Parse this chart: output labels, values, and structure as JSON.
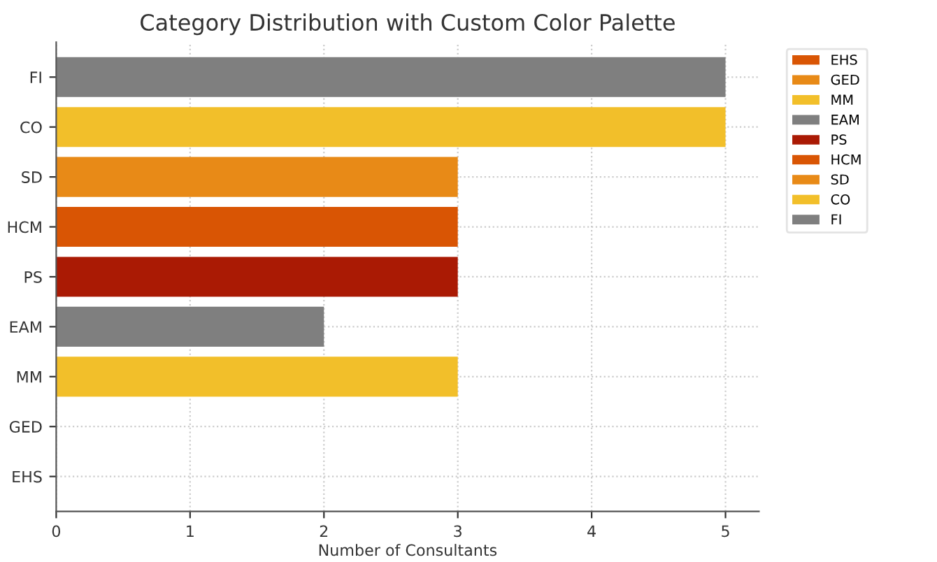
{
  "chart_data": {
    "type": "bar",
    "orientation": "horizontal",
    "title": "Category Distribution with Custom Color Palette",
    "xlabel": "Number of Consultants",
    "categories": [
      "FI",
      "CO",
      "SD",
      "HCM",
      "PS",
      "EAM",
      "MM",
      "GED",
      "EHS"
    ],
    "series": [
      {
        "name": "EHS",
        "color": "#d95504",
        "values": [
          null,
          null,
          null,
          null,
          null,
          null,
          null,
          null,
          0
        ]
      },
      {
        "name": "GED",
        "color": "#e88a17",
        "values": [
          null,
          null,
          null,
          null,
          null,
          null,
          null,
          0,
          null
        ]
      },
      {
        "name": "MM",
        "color": "#f2bf2a",
        "values": [
          null,
          null,
          null,
          null,
          null,
          null,
          3,
          null,
          null
        ]
      },
      {
        "name": "EAM",
        "color": "#7f7f7f",
        "values": [
          null,
          null,
          null,
          null,
          null,
          2,
          null,
          null,
          null
        ]
      },
      {
        "name": "PS",
        "color": "#aa1a04",
        "values": [
          null,
          null,
          null,
          null,
          3,
          null,
          null,
          null,
          null
        ]
      },
      {
        "name": "HCM",
        "color": "#d95504",
        "values": [
          null,
          null,
          null,
          3,
          null,
          null,
          null,
          null,
          null
        ]
      },
      {
        "name": "SD",
        "color": "#e88a17",
        "values": [
          null,
          null,
          3,
          null,
          null,
          null,
          null,
          null,
          null
        ]
      },
      {
        "name": "CO",
        "color": "#f2bf2a",
        "values": [
          null,
          5,
          null,
          null,
          null,
          null,
          null,
          null,
          null
        ]
      },
      {
        "name": "FI",
        "color": "#7f7f7f",
        "values": [
          5,
          null,
          null,
          null,
          null,
          null,
          null,
          null,
          null
        ]
      }
    ],
    "xlim": [
      0,
      5.25
    ],
    "xticks": [
      0,
      1,
      2,
      3,
      4,
      5
    ],
    "grid": true,
    "line_style": "dotted",
    "legend": "top right"
  }
}
